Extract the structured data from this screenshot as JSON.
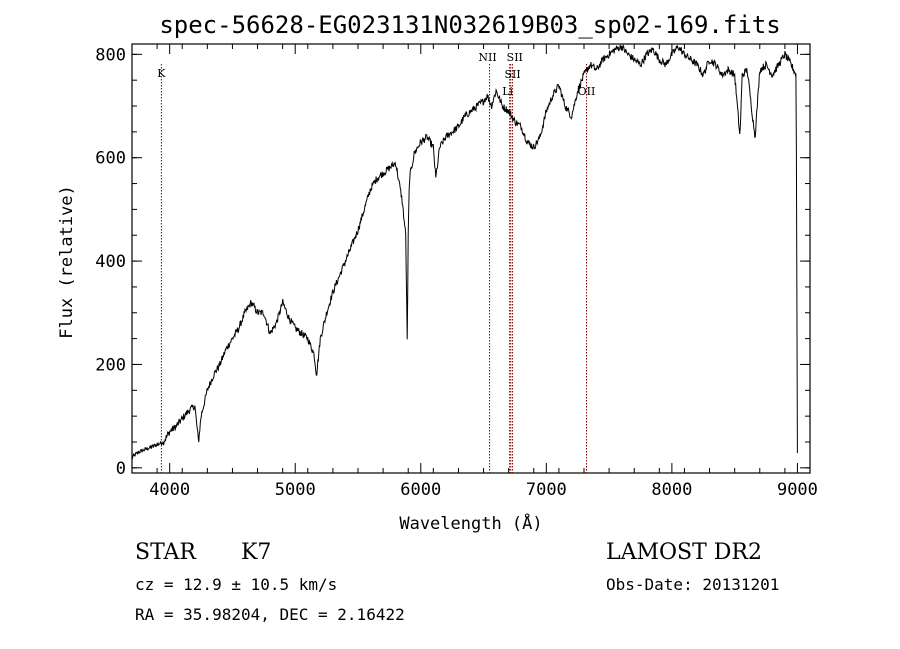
{
  "chart_data": {
    "type": "line",
    "title": "spec-56628-EG023131N032619B03_sp02-169.fits",
    "xlabel": "Wavelength (Å)",
    "ylabel": "Flux (relative)",
    "xlim": [
      3700,
      9100
    ],
    "ylim": [
      -10,
      820
    ],
    "xticks": [
      4000,
      5000,
      6000,
      7000,
      8000,
      9000
    ],
    "yticks": [
      0,
      200,
      400,
      600,
      800
    ],
    "grid": false,
    "series": [
      {
        "values_x": [
          3700,
          3750,
          3800,
          3850,
          3900,
          3950,
          4000,
          4050,
          4100,
          4150,
          4200,
          4230,
          4250,
          4300,
          4350,
          4400,
          4450,
          4500,
          4550,
          4600,
          4650,
          4700,
          4750,
          4800,
          4850,
          4900,
          4950,
          5000,
          5050,
          5100,
          5150,
          5170,
          5200,
          5250,
          5300,
          5350,
          5400,
          5450,
          5500,
          5550,
          5600,
          5650,
          5700,
          5750,
          5800,
          5850,
          5880,
          5893,
          5900,
          5910,
          5950,
          6000,
          6050,
          6100,
          6120,
          6150,
          6200,
          6250,
          6300,
          6350,
          6400,
          6450,
          6500,
          6530,
          6563,
          6600,
          6650,
          6700,
          6750,
          6800,
          6850,
          6900,
          6950,
          7000,
          7050,
          7100,
          7150,
          7200,
          7250,
          7300,
          7350,
          7400,
          7450,
          7500,
          7550,
          7600,
          7650,
          7700,
          7750,
          7800,
          7850,
          7900,
          7950,
          8000,
          8050,
          8100,
          8150,
          8200,
          8250,
          8300,
          8350,
          8400,
          8450,
          8500,
          8542,
          8560,
          8600,
          8662,
          8700,
          8750,
          8800,
          8850,
          8900,
          8950,
          8990,
          9000
        ],
        "values_y": [
          20,
          30,
          35,
          40,
          45,
          50,
          70,
          80,
          95,
          110,
          120,
          50,
          100,
          150,
          180,
          200,
          230,
          250,
          270,
          300,
          320,
          300,
          300,
          260,
          280,
          320,
          290,
          270,
          260,
          250,
          220,
          180,
          250,
          300,
          340,
          370,
          400,
          430,
          460,
          500,
          540,
          560,
          570,
          580,
          590,
          520,
          450,
          235,
          450,
          560,
          610,
          630,
          640,
          620,
          560,
          620,
          640,
          650,
          660,
          680,
          690,
          700,
          710,
          720,
          700,
          730,
          700,
          690,
          670,
          660,
          630,
          620,
          640,
          690,
          720,
          740,
          700,
          680,
          730,
          760,
          780,
          770,
          790,
          800,
          810,
          815,
          800,
          790,
          780,
          800,
          810,
          790,
          780,
          800,
          815,
          800,
          790,
          780,
          760,
          790,
          780,
          760,
          770,
          760,
          640,
          760,
          770,
          640,
          770,
          780,
          760,
          780,
          800,
          780,
          760,
          30
        ]
      }
    ],
    "line_markers": [
      {
        "label": "K",
        "x": 3934
      },
      {
        "label": "NII",
        "x": 6548
      },
      {
        "label": "SII",
        "x": 6717
      },
      {
        "label": "SII",
        "x": 6731
      },
      {
        "label": "Li",
        "x": 6708
      },
      {
        "label": "OII",
        "x": 7320
      }
    ]
  },
  "info": {
    "class": "STAR",
    "subclass": "K7",
    "cz": "cz = 12.9 ± 10.5 km/s",
    "radec": "RA =  35.98204, DEC =   2.16422",
    "survey": "LAMOST DR2",
    "obsdate": "Obs-Date: 20131201"
  },
  "colors": {
    "marker": "#8b0000",
    "spectrum": "#000000"
  }
}
